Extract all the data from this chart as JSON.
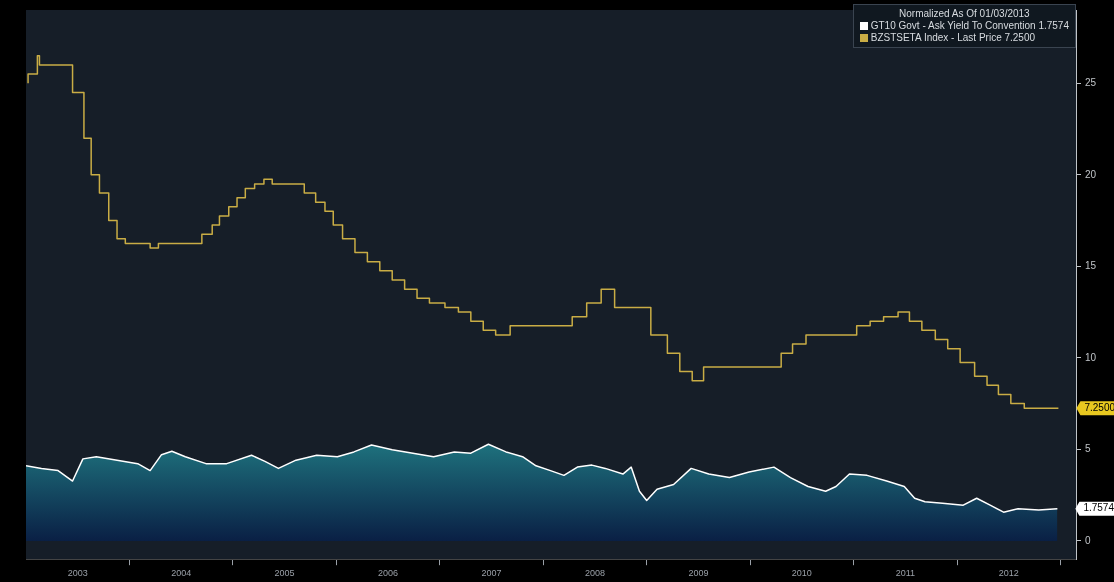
{
  "chart_data": {
    "type": "area",
    "legend_title": "Normalized As Of 01/03/2013",
    "legend": "top right",
    "grid": false,
    "line_style": "solid",
    "marker": "none",
    "xlim": [
      2003,
      2013.15
    ],
    "xticks": [
      {
        "value": 2003.5,
        "label": "2003"
      },
      {
        "value": 2004,
        "label": null
      },
      {
        "value": 2004.5,
        "label": "2004"
      },
      {
        "value": 2005,
        "label": null
      },
      {
        "value": 2005.5,
        "label": "2005"
      },
      {
        "value": 2006,
        "label": null
      },
      {
        "value": 2006.5,
        "label": "2006"
      },
      {
        "value": 2007,
        "label": null
      },
      {
        "value": 2007.5,
        "label": "2007"
      },
      {
        "value": 2008,
        "label": null
      },
      {
        "value": 2008.5,
        "label": "2008"
      },
      {
        "value": 2009,
        "label": null
      },
      {
        "value": 2009.5,
        "label": "2009"
      },
      {
        "value": 2010,
        "label": null
      },
      {
        "value": 2010.5,
        "label": "2010"
      },
      {
        "value": 2011,
        "label": null
      },
      {
        "value": 2011.5,
        "label": "2011"
      },
      {
        "value": 2012,
        "label": null
      },
      {
        "value": 2012.5,
        "label": "2012"
      },
      {
        "value": 2013,
        "label": null
      }
    ],
    "ylim": [
      -1,
      29
    ],
    "yticks": [
      0,
      5,
      10,
      15,
      20,
      25
    ],
    "annotations": [
      {
        "text": "7.2500",
        "x": 2012.98,
        "y": 7.25
      },
      {
        "text": "1.7574",
        "x": 2012.97,
        "y": 1.76
      }
    ],
    "series": [
      {
        "name": "GT10 Govt - Ask Yield To Convention 1.7574",
        "color": "#ffffff",
        "x": [
          2003.0,
          2003.15,
          2003.31,
          2003.45,
          2003.55,
          2003.68,
          2003.88,
          2004.08,
          2004.2,
          2004.31,
          2004.41,
          2004.54,
          2004.74,
          2004.94,
          2005.18,
          2005.31,
          2005.44,
          2005.61,
          2005.81,
          2006.01,
          2006.17,
          2006.34,
          2006.54,
          2006.74,
          2006.94,
          2007.14,
          2007.3,
          2007.47,
          2007.64,
          2007.8,
          2007.93,
          2008.07,
          2008.2,
          2008.33,
          2008.47,
          2008.6,
          2008.77,
          2008.85,
          2008.93,
          2009.0,
          2009.1,
          2009.26,
          2009.43,
          2009.6,
          2009.8,
          2009.99,
          2010.23,
          2010.39,
          2010.56,
          2010.73,
          2010.83,
          2010.96,
          2011.13,
          2011.32,
          2011.49,
          2011.59,
          2011.69,
          2011.86,
          2012.06,
          2012.19,
          2012.32,
          2012.45,
          2012.59,
          2012.79,
          2012.97
        ],
        "values": [
          4.1,
          3.96,
          3.84,
          3.27,
          4.48,
          4.6,
          4.41,
          4.22,
          3.84,
          4.71,
          4.9,
          4.6,
          4.22,
          4.22,
          4.68,
          4.34,
          3.96,
          4.41,
          4.68,
          4.6,
          4.86,
          5.24,
          4.98,
          4.79,
          4.6,
          4.86,
          4.79,
          5.28,
          4.86,
          4.6,
          4.1,
          3.84,
          3.58,
          4.03,
          4.14,
          3.96,
          3.65,
          4.03,
          2.71,
          2.21,
          2.82,
          3.08,
          3.96,
          3.65,
          3.46,
          3.76,
          4.03,
          3.46,
          2.97,
          2.71,
          2.97,
          3.65,
          3.58,
          3.27,
          2.97,
          2.33,
          2.14,
          2.06,
          1.95,
          2.33,
          1.95,
          1.57,
          1.76,
          1.69,
          1.76
        ]
      },
      {
        "name": "BZSTSETA Index - Last Price 7.2500",
        "color": "#c9ad45",
        "type": "step",
        "x": [
          2003.02,
          2003.11,
          2003.13,
          2003.45,
          2003.56,
          2003.63,
          2003.71,
          2003.8,
          2003.88,
          2003.96,
          2004.2,
          2004.28,
          2004.7,
          2004.8,
          2004.87,
          2004.96,
          2005.04,
          2005.12,
          2005.21,
          2005.3,
          2005.38,
          2005.69,
          2005.8,
          2005.89,
          2005.97,
          2006.06,
          2006.18,
          2006.3,
          2006.42,
          2006.54,
          2006.66,
          2006.78,
          2006.9,
          2007.05,
          2007.18,
          2007.3,
          2007.42,
          2007.54,
          2007.68,
          2008.28,
          2008.42,
          2008.56,
          2008.69,
          2009.04,
          2009.2,
          2009.32,
          2009.44,
          2009.55,
          2010.3,
          2010.41,
          2010.54,
          2011.03,
          2011.16,
          2011.29,
          2011.43,
          2011.54,
          2011.66,
          2011.79,
          2011.91,
          2012.03,
          2012.17,
          2012.29,
          2012.4,
          2012.52,
          2012.65,
          2012.77,
          2012.98
        ],
        "values": [
          25,
          25.5,
          26.5,
          26,
          24.5,
          22,
          20,
          19,
          17.5,
          16.5,
          16.25,
          16,
          16.25,
          16.75,
          17.25,
          17.75,
          18.25,
          18.75,
          19.25,
          19.5,
          19.75,
          19.5,
          19,
          18.5,
          18,
          17.25,
          16.5,
          15.75,
          15.25,
          14.75,
          14.25,
          13.75,
          13.25,
          13,
          12.75,
          12.5,
          12,
          11.5,
          11.25,
          11.75,
          12.25,
          13,
          13.75,
          12.75,
          11.25,
          10.25,
          9.25,
          8.75,
          9.5,
          10.25,
          10.75,
          11.25,
          11.75,
          12,
          12.25,
          12.5,
          12,
          11.5,
          11,
          10.5,
          9.75,
          9,
          8.5,
          8,
          7.5,
          7.25,
          7.25
        ]
      }
    ]
  }
}
